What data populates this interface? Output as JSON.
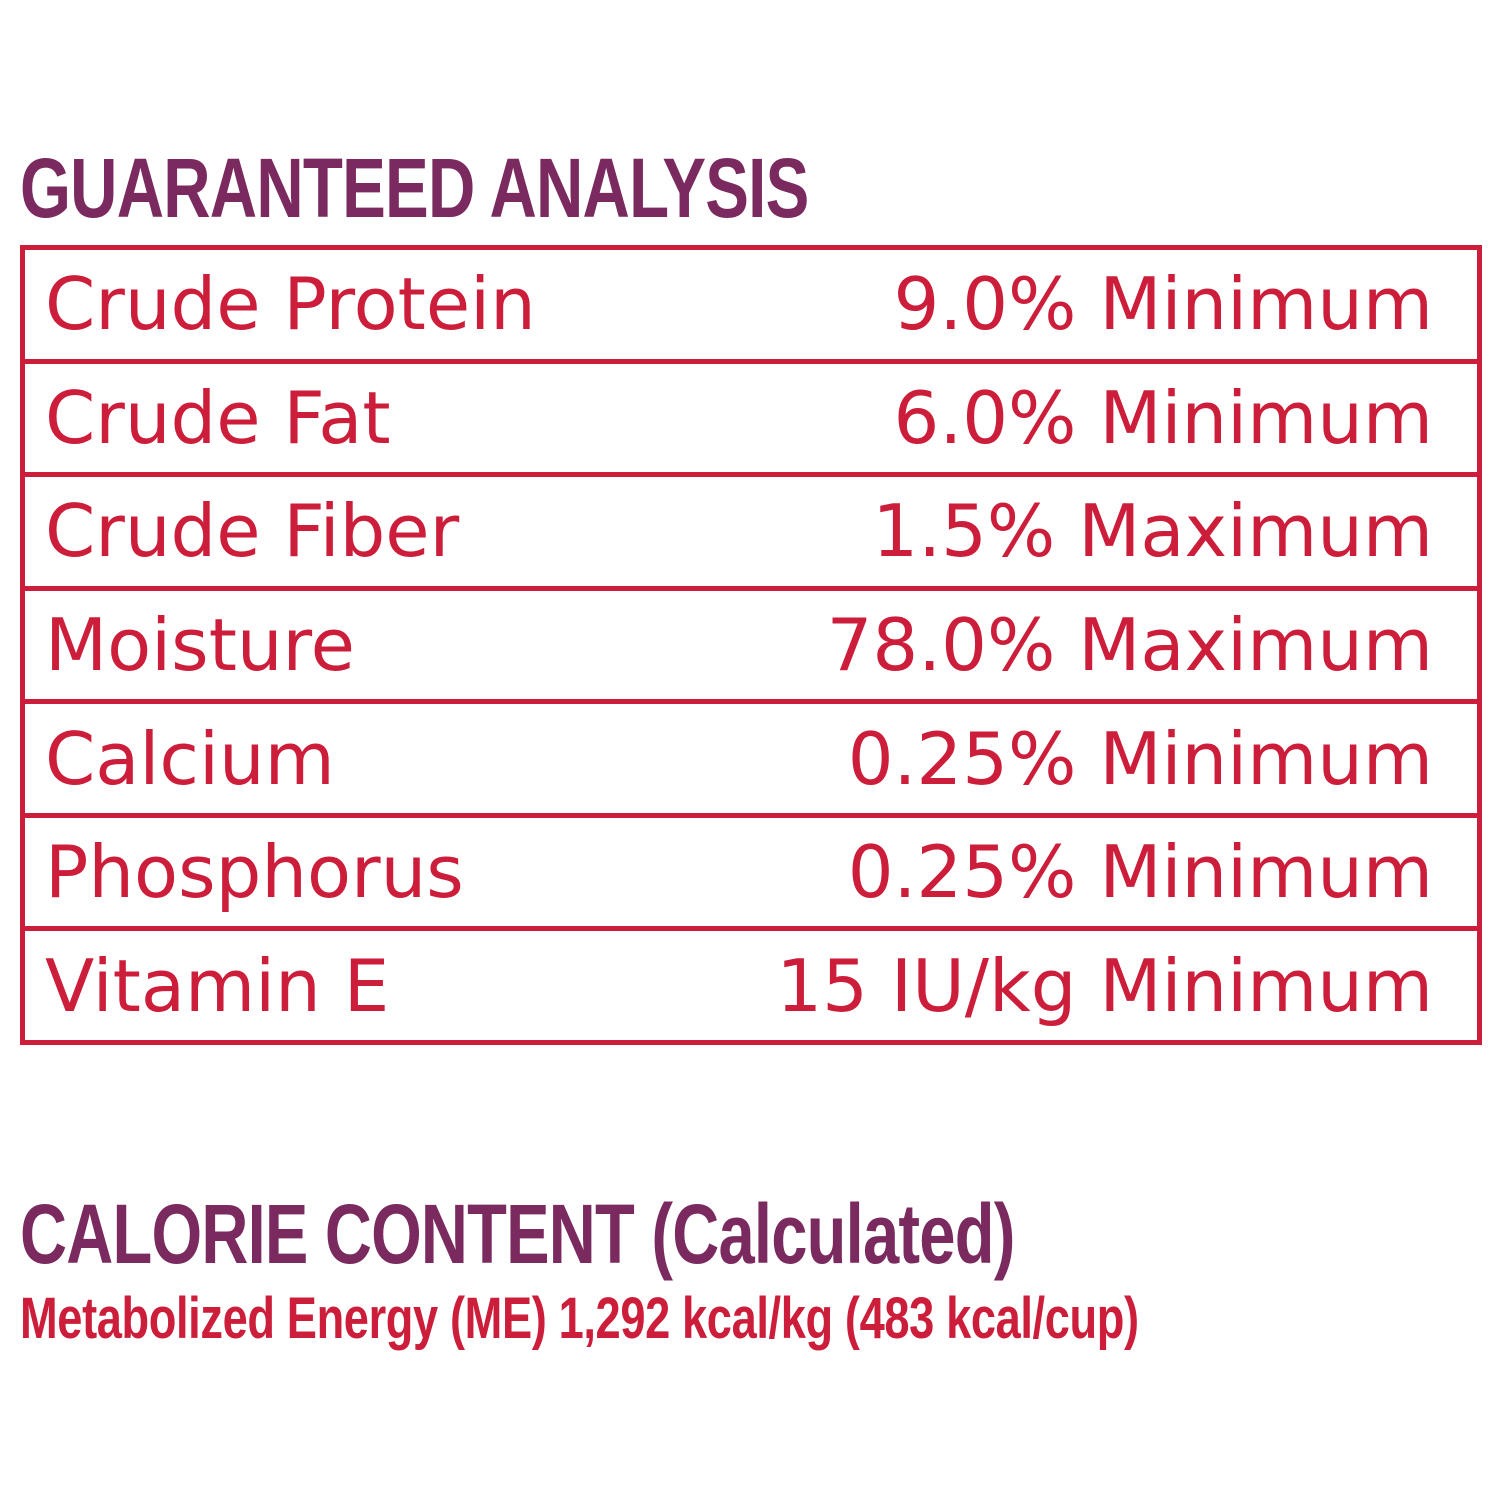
{
  "guaranteed_analysis": {
    "title": "GUARANTEED ANALYSIS",
    "rows": [
      {
        "nutrient": "Crude Protein",
        "value": "9.0% Minimum"
      },
      {
        "nutrient": "Crude Fat",
        "value": "6.0% Minimum"
      },
      {
        "nutrient": "Crude Fiber",
        "value": "1.5% Maximum"
      },
      {
        "nutrient": "Moisture",
        "value": "78.0% Maximum"
      },
      {
        "nutrient": "Calcium",
        "value": "0.25% Minimum"
      },
      {
        "nutrient": "Phosphorus",
        "value": "0.25% Minimum"
      },
      {
        "nutrient": "Vitamin E",
        "value": "15 IU/kg Minimum"
      }
    ]
  },
  "calorie_content": {
    "title": "CALORIE CONTENT (Calculated)",
    "metabolized_energy": "Metabolized Energy (ME) 1,292 kcal/kg (483 kcal/cup)"
  },
  "colors": {
    "heading": "#7a2a5f",
    "accent_red": "#cc1e3a",
    "background": "#ffffff"
  }
}
